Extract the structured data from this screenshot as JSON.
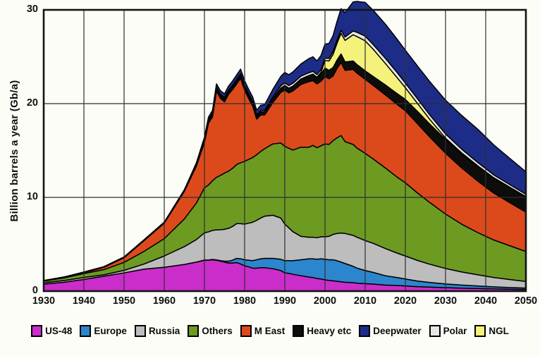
{
  "axes": {
    "y_label": "Billion barrels a year (Gb/a)",
    "y_ticks": [
      "0",
      "10",
      "20",
      "30"
    ],
    "x_ticks": [
      "1930",
      "1940",
      "1950",
      "1960",
      "1970",
      "1980",
      "1990",
      "2000",
      "2010",
      "2020",
      "2030",
      "2040",
      "2050"
    ]
  },
  "colors": {
    "frame": "#141414",
    "grid": "#2e2e2e",
    "outline": "#000000",
    "background": "#fdfdf8"
  },
  "chart_data": {
    "type": "area",
    "stacked": true,
    "title": "",
    "xlabel": "",
    "ylabel": "Billion barrels a year (Gb/a)",
    "xlim": [
      1930,
      2050
    ],
    "ylim": [
      0,
      30
    ],
    "grid": true,
    "legend_position": "bottom",
    "x": [
      1930,
      1935,
      1940,
      1945,
      1950,
      1955,
      1960,
      1965,
      1968,
      1970,
      1971,
      1972,
      1973,
      1974,
      1975,
      1976,
      1977,
      1978,
      1979,
      1980,
      1981,
      1982,
      1983,
      1984,
      1985,
      1987,
      1989,
      1990,
      1991,
      1992,
      1994,
      1996,
      1997,
      1998,
      1999,
      2000,
      2001,
      2002,
      2003,
      2004,
      2005,
      2007,
      2008,
      2010,
      2012,
      2015,
      2018,
      2020,
      2023,
      2026,
      2030,
      2034,
      2038,
      2042,
      2046,
      2050
    ],
    "series": [
      {
        "name": "US-48",
        "color": "#cb2dcb",
        "values": [
          0.75,
          0.95,
          1.25,
          1.6,
          1.95,
          2.35,
          2.55,
          2.85,
          3.1,
          3.3,
          3.3,
          3.35,
          3.3,
          3.2,
          3.1,
          3.0,
          3.0,
          3.05,
          2.9,
          2.7,
          2.6,
          2.45,
          2.45,
          2.5,
          2.5,
          2.4,
          2.2,
          1.95,
          1.9,
          1.8,
          1.65,
          1.5,
          1.45,
          1.35,
          1.3,
          1.2,
          1.15,
          1.1,
          1.05,
          1.0,
          0.95,
          0.9,
          0.85,
          0.8,
          0.75,
          0.65,
          0.6,
          0.55,
          0.48,
          0.43,
          0.37,
          0.32,
          0.28,
          0.24,
          0.21,
          0.18
        ]
      },
      {
        "name": "Europe",
        "color": "#2c86cd",
        "values": [
          0,
          0,
          0,
          0,
          0,
          0,
          0,
          0,
          0,
          0.02,
          0.02,
          0.03,
          0.04,
          0.05,
          0.1,
          0.2,
          0.3,
          0.45,
          0.55,
          0.65,
          0.7,
          0.8,
          0.9,
          0.95,
          1.0,
          1.1,
          1.2,
          1.3,
          1.35,
          1.45,
          1.7,
          1.95,
          2.0,
          2.05,
          2.15,
          2.2,
          2.2,
          2.25,
          2.2,
          2.1,
          2.0,
          1.75,
          1.6,
          1.4,
          1.25,
          1.0,
          0.85,
          0.75,
          0.6,
          0.5,
          0.4,
          0.33,
          0.27,
          0.22,
          0.18,
          0.15
        ]
      },
      {
        "name": "Russia",
        "color": "#bdbdbd",
        "values": [
          0.15,
          0.18,
          0.21,
          0.15,
          0.27,
          0.55,
          1.2,
          1.9,
          2.4,
          2.9,
          3.0,
          3.1,
          3.2,
          3.3,
          3.4,
          3.5,
          3.6,
          3.7,
          3.75,
          3.8,
          3.95,
          4.1,
          4.2,
          4.35,
          4.5,
          4.6,
          4.4,
          3.9,
          3.5,
          3.1,
          2.5,
          2.3,
          2.3,
          2.3,
          2.35,
          2.4,
          2.5,
          2.7,
          2.9,
          3.1,
          3.2,
          3.3,
          3.3,
          3.2,
          3.1,
          2.9,
          2.6,
          2.45,
          2.2,
          1.95,
          1.65,
          1.4,
          1.2,
          1.0,
          0.85,
          0.7
        ]
      },
      {
        "name": "Others",
        "color": "#6d9b22",
        "values": [
          0.18,
          0.28,
          0.42,
          0.55,
          0.85,
          1.35,
          1.85,
          2.95,
          3.9,
          4.8,
          5.0,
          5.3,
          5.6,
          5.8,
          6.0,
          6.1,
          6.2,
          6.3,
          6.5,
          6.7,
          6.8,
          6.9,
          7.0,
          7.1,
          7.2,
          7.6,
          8.0,
          8.3,
          8.5,
          8.7,
          9.5,
          9.6,
          9.8,
          9.6,
          9.7,
          9.9,
          9.8,
          10.0,
          10.2,
          10.4,
          9.8,
          9.7,
          9.5,
          9.3,
          9.0,
          8.6,
          8.1,
          7.8,
          7.2,
          6.6,
          5.8,
          5.1,
          4.5,
          4.0,
          3.6,
          3.2
        ]
      },
      {
        "name": "M East",
        "color": "#dc4a1c",
        "values": [
          0.02,
          0.05,
          0.1,
          0.25,
          0.5,
          1.15,
          1.65,
          2.95,
          3.95,
          4.85,
          6.6,
          6.8,
          9.2,
          8.2,
          7.6,
          8.2,
          8.4,
          8.6,
          9.0,
          7.6,
          6.5,
          5.5,
          3.8,
          3.9,
          3.6,
          4.4,
          5.4,
          6.0,
          5.9,
          6.3,
          6.7,
          7.0,
          6.9,
          6.8,
          6.9,
          7.2,
          7.0,
          6.9,
          7.4,
          7.8,
          7.6,
          8.0,
          8.0,
          7.9,
          7.85,
          7.8,
          7.75,
          7.7,
          7.4,
          7.0,
          6.5,
          6.0,
          5.5,
          5.0,
          4.6,
          4.2
        ]
      },
      {
        "name": "Heavy etc",
        "color": "#0d0d0c",
        "values": [
          0.03,
          0.04,
          0.05,
          0.06,
          0.07,
          0.08,
          0.1,
          0.15,
          0.2,
          0.25,
          0.27,
          0.28,
          0.3,
          0.3,
          0.3,
          0.3,
          0.3,
          0.3,
          0.3,
          0.3,
          0.3,
          0.3,
          0.3,
          0.32,
          0.35,
          0.4,
          0.45,
          0.5,
          0.5,
          0.52,
          0.58,
          0.65,
          0.7,
          0.7,
          0.75,
          0.9,
          0.9,
          0.9,
          0.9,
          0.9,
          0.9,
          0.9,
          0.9,
          0.9,
          0.95,
          1.05,
          1.15,
          1.2,
          1.3,
          1.38,
          1.45,
          1.5,
          1.55,
          1.58,
          1.6,
          1.6
        ]
      },
      {
        "name": "NGL",
        "color": "#f5f27c",
        "values": [
          0,
          0,
          0,
          0,
          0,
          0,
          0,
          0,
          0,
          0,
          0,
          0,
          0,
          0,
          0,
          0,
          0,
          0,
          0,
          0,
          0,
          0,
          0,
          0,
          0,
          0,
          0,
          0,
          0,
          0,
          0,
          0,
          0,
          0,
          0.2,
          0.8,
          1.0,
          1.4,
          1.8,
          2.2,
          2.3,
          2.8,
          3.0,
          3.2,
          2.9,
          2.3,
          1.7,
          1.25,
          0.85,
          0.5,
          0.15,
          0.1,
          0.08,
          0.06,
          0.05,
          0.05
        ]
      },
      {
        "name": "Polar",
        "color": "#e6e6e3",
        "values": [
          0,
          0,
          0,
          0,
          0,
          0,
          0,
          0,
          0.05,
          0.1,
          0.11,
          0.12,
          0.12,
          0.13,
          0.15,
          0.15,
          0.16,
          0.17,
          0.18,
          0.2,
          0.18,
          0.17,
          0.15,
          0.15,
          0.15,
          0.2,
          0.25,
          0.28,
          0.28,
          0.3,
          0.3,
          0.3,
          0.3,
          0.3,
          0.28,
          0.25,
          0.27,
          0.3,
          0.32,
          0.33,
          0.35,
          0.4,
          0.45,
          0.5,
          0.5,
          0.55,
          0.55,
          0.5,
          0.5,
          0.48,
          0.45,
          0.4,
          0.35,
          0.3,
          0.27,
          0.25
        ]
      },
      {
        "name": "Deepwater",
        "color": "#1d2d87",
        "values": [
          0,
          0,
          0,
          0,
          0,
          0,
          0,
          0,
          0.1,
          0.2,
          0.25,
          0.3,
          0.35,
          0.38,
          0.4,
          0.42,
          0.45,
          0.48,
          0.5,
          0.5,
          0.5,
          0.5,
          0.5,
          0.55,
          0.6,
          0.8,
          1.0,
          1.1,
          1.15,
          1.2,
          1.3,
          1.5,
          1.55,
          1.45,
          1.5,
          1.5,
          1.6,
          1.7,
          2.0,
          2.3,
          2.6,
          3.1,
          3.3,
          3.6,
          3.65,
          3.65,
          3.55,
          3.5,
          3.5,
          3.55,
          3.6,
          3.6,
          3.55,
          3.2,
          2.8,
          2.4
        ]
      }
    ],
    "legend": [
      {
        "label": "US-48",
        "color": "#cb2dcb"
      },
      {
        "label": "Europe",
        "color": "#2c86cd"
      },
      {
        "label": "Russia",
        "color": "#bdbdbd"
      },
      {
        "label": "Others",
        "color": "#6d9b22"
      },
      {
        "label": "M East",
        "color": "#dc4a1c"
      },
      {
        "label": "Heavy etc",
        "color": "#0d0d0c"
      },
      {
        "label": "Deepwater",
        "color": "#1d2d87"
      },
      {
        "label": "Polar",
        "color": "#e6e6e3"
      },
      {
        "label": "NGL",
        "color": "#f5f27c"
      }
    ]
  }
}
